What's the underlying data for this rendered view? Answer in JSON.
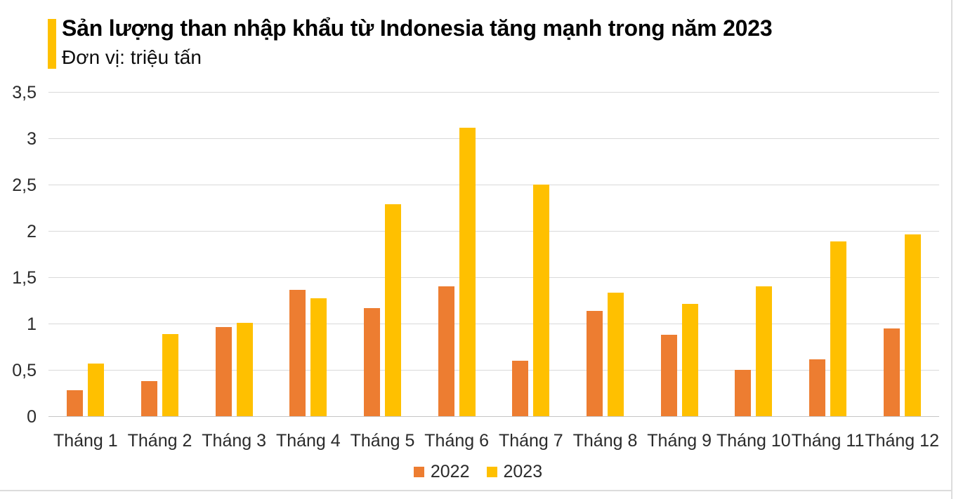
{
  "header": {
    "title": "Sản lượng than nhập khẩu từ Indonesia tăng mạnh trong năm 2023",
    "subtitle": "Đơn vị: triệu tấn",
    "accent_color": "#FFC000"
  },
  "chart_data": {
    "type": "bar",
    "title": "Sản lượng than nhập khẩu từ Indonesia tăng mạnh trong năm 2023",
    "unit_label": "Đơn vị: triệu tấn",
    "categories": [
      "Tháng 1",
      "Tháng 2",
      "Tháng 3",
      "Tháng 4",
      "Tháng 5",
      "Tháng 6",
      "Tháng 7",
      "Tháng 8",
      "Tháng 9",
      "Tháng 10",
      "Tháng 11",
      "Tháng 12"
    ],
    "series": [
      {
        "name": "2022",
        "color": "#ED7D31",
        "values": [
          0.28,
          0.38,
          0.96,
          1.36,
          1.17,
          1.4,
          0.6,
          1.14,
          0.88,
          0.5,
          0.61,
          0.95
        ]
      },
      {
        "name": "2023",
        "color": "#FFC000",
        "values": [
          0.57,
          0.89,
          1.01,
          1.27,
          2.29,
          3.11,
          2.5,
          1.33,
          1.21,
          1.4,
          1.89,
          1.96
        ]
      }
    ],
    "xlabel": "",
    "ylabel": "",
    "ylim": [
      0,
      3.5
    ],
    "ytick_values": [
      0,
      0.5,
      1,
      1.5,
      2,
      2.5,
      3,
      3.5
    ],
    "ytick_labels": [
      "0",
      "0,5",
      "1",
      "1,5",
      "2",
      "2,5",
      "3",
      "3,5"
    ],
    "grid": true,
    "gridline_color": "#D9D9D9",
    "legend_position": "bottom"
  }
}
